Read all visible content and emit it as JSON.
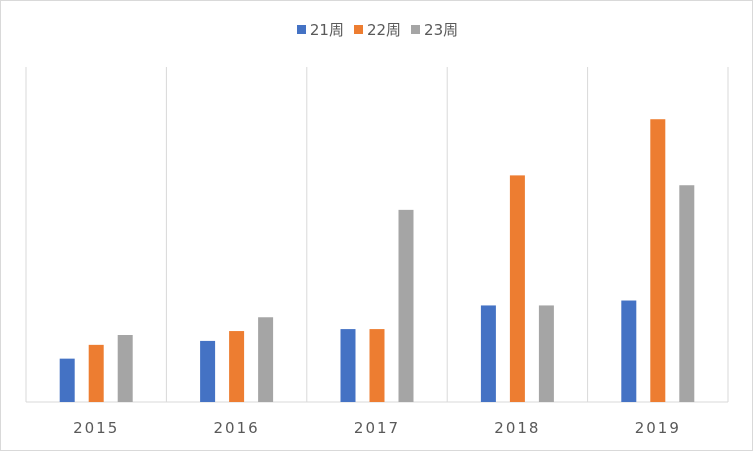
{
  "chart_data": {
    "type": "bar",
    "categories": [
      "2015",
      "2016",
      "2017",
      "2018",
      "2019"
    ],
    "series": [
      {
        "name": "21周",
        "color": "#4472c4",
        "values": [
          44,
          62,
          74,
          98,
          103
        ]
      },
      {
        "name": "22周",
        "color": "#ed7d31",
        "values": [
          58,
          72,
          74,
          230,
          287
        ]
      },
      {
        "name": "23周",
        "color": "#a5a5a5",
        "values": [
          68,
          86,
          195,
          98,
          220
        ]
      }
    ],
    "ylim": [
      0,
      340
    ],
    "legend_position": "top",
    "grid": "vertical category separators"
  }
}
